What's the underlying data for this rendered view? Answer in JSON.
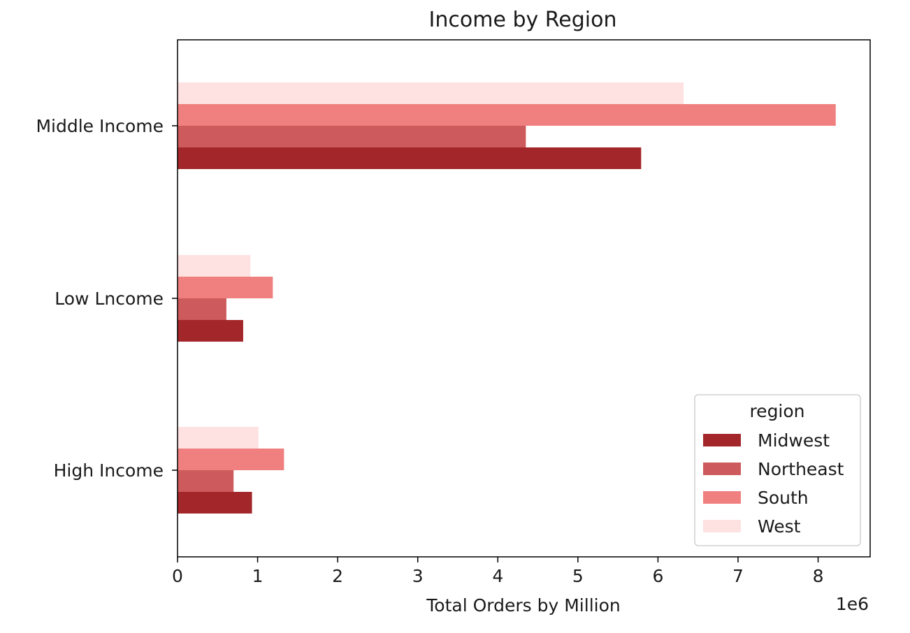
{
  "chart_data": {
    "type": "bar",
    "orientation": "horizontal",
    "title": "Income by Region",
    "xlabel": "Total Orders by Million",
    "ylabel": "",
    "x_offset_text": "1e6",
    "xlim": [
      0,
      8650000
    ],
    "xticks": [
      0,
      1000000,
      2000000,
      3000000,
      4000000,
      5000000,
      6000000,
      7000000,
      8000000
    ],
    "xtick_labels": [
      "0",
      "1",
      "2",
      "3",
      "4",
      "5",
      "6",
      "7",
      "8"
    ],
    "categories": [
      "High Income",
      "Low Lncome",
      "Middle Income"
    ],
    "series": [
      {
        "name": "Midwest",
        "color": "#a3262a",
        "values": [
          930000,
          820000,
          5790000
        ]
      },
      {
        "name": "Northeast",
        "color": "#cd5a5c",
        "values": [
          700000,
          610000,
          4350000
        ]
      },
      {
        "name": "South",
        "color": "#f07f7f",
        "values": [
          1330000,
          1190000,
          8220000
        ]
      },
      {
        "name": "West",
        "color": "#fde2e1",
        "values": [
          1010000,
          910000,
          6320000
        ]
      }
    ],
    "legend": {
      "title": "region",
      "placement": "lower right"
    },
    "grid": false
  }
}
